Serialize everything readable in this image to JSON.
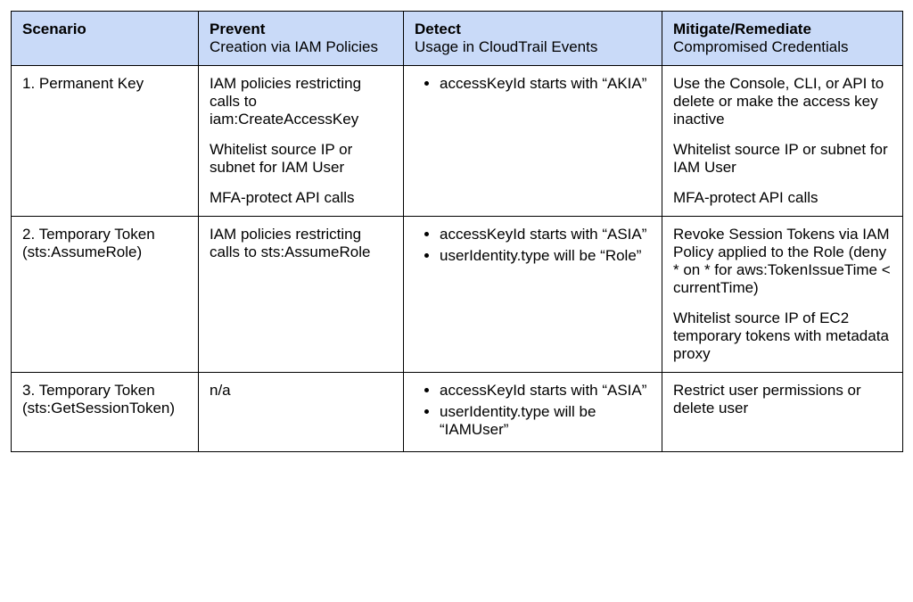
{
  "table": {
    "header_bg": "#c9daf8",
    "border_color": "#000000",
    "font_family": "Arial",
    "font_size_pt": 13,
    "columns": [
      {
        "key": "scenario",
        "bold": "Scenario",
        "sub": ""
      },
      {
        "key": "prevent",
        "bold": "Prevent",
        "sub": "Creation via IAM Policies"
      },
      {
        "key": "detect",
        "bold": "Detect",
        "sub": "Usage in CloudTrail Events"
      },
      {
        "key": "mitigate",
        "bold": "Mitigate/Remediate",
        "sub": "Compromised Credentials"
      }
    ],
    "rows": [
      {
        "scenario": "1. Permanent Key",
        "prevent": [
          "IAM policies restricting calls to iam:CreateAccessKey",
          "Whitelist source IP or subnet for IAM User",
          "MFA-protect API calls"
        ],
        "detect": [
          "accessKeyId starts with “AKIA”"
        ],
        "mitigate": [
          "Use the Console, CLI, or API to delete or make the access key inactive",
          "Whitelist source IP or subnet for IAM User",
          "MFA-protect API calls"
        ]
      },
      {
        "scenario": "2. Temporary Token (sts:AssumeRole)",
        "prevent": [
          "IAM policies restricting calls to sts:AssumeRole"
        ],
        "detect": [
          "accessKeyId starts with “ASIA”",
          "userIdentity.type will be “Role”"
        ],
        "mitigate": [
          "Revoke Session Tokens via IAM Policy applied to the Role (deny * on * for aws:TokenIssueTime < currentTime)",
          "Whitelist source IP of EC2 temporary tokens with metadata proxy"
        ]
      },
      {
        "scenario": "3. Temporary Token (sts:GetSessionToken)",
        "prevent": [
          "n/a"
        ],
        "detect": [
          "accessKeyId starts with “ASIA”",
          "userIdentity.type will be “IAMUser”"
        ],
        "mitigate": [
          "Restrict user permissions or delete user"
        ]
      }
    ]
  }
}
